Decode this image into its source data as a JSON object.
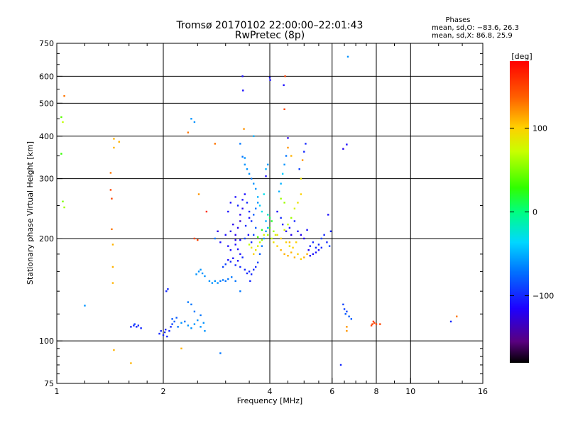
{
  "chart_data": {
    "type": "scatter",
    "title": "Tromsø 20170102 22:00:00–22:01:43",
    "subtitle": "RwPretec (8p)",
    "stats": {
      "heading": "Phases",
      "line1": "mean, sd,O: −83.6, 26.3",
      "line2": "mean, sd,X:  86.8, 25.9"
    },
    "xlabel": "Frequency [MHz]",
    "ylabel": "Stationary phase Virtual Height [km]",
    "x_scale": "log",
    "y_scale": "log",
    "xlim": [
      1,
      16
    ],
    "ylim": [
      75,
      750
    ],
    "x_ticks": [
      1,
      2,
      4,
      6,
      8,
      10,
      16
    ],
    "x_tick_labels": [
      "1",
      "2",
      "4",
      "6",
      "8",
      "10",
      "16"
    ],
    "y_ticks": [
      75,
      100,
      200,
      300,
      400,
      500,
      600,
      750
    ],
    "y_tick_labels": [
      "75",
      "100",
      "200",
      "300",
      "400",
      "500",
      "600",
      "750"
    ],
    "grid": true,
    "colorbar": {
      "label": "[deg]",
      "range": [
        -180,
        180
      ],
      "ticks": [
        100,
        0,
        -100
      ],
      "tick_labels": [
        "100",
        "0",
        "−100"
      ]
    },
    "points": [
      [
        1.05,
        525,
        130
      ],
      [
        1.03,
        455,
        40
      ],
      [
        1.04,
        440,
        70
      ],
      [
        1.03,
        355,
        30
      ],
      [
        1.04,
        257,
        50
      ],
      [
        1.05,
        247,
        60
      ],
      [
        1.2,
        127,
        -60
      ],
      [
        1.45,
        393,
        110
      ],
      [
        1.5,
        385,
        110
      ],
      [
        1.45,
        370,
        110
      ],
      [
        1.42,
        312,
        130
      ],
      [
        1.42,
        278,
        150
      ],
      [
        1.43,
        262,
        150
      ],
      [
        1.43,
        213,
        130
      ],
      [
        1.44,
        192,
        110
      ],
      [
        1.44,
        165,
        110
      ],
      [
        1.44,
        148,
        110
      ],
      [
        1.45,
        94,
        110
      ],
      [
        1.62,
        86,
        110
      ],
      [
        1.62,
        110,
        -100
      ],
      [
        1.65,
        111,
        -100
      ],
      [
        1.68,
        110,
        -100
      ],
      [
        1.7,
        111,
        -100
      ],
      [
        1.66,
        112,
        -90
      ],
      [
        1.73,
        109,
        -100
      ],
      [
        1.95,
        105,
        -100
      ],
      [
        1.97,
        107,
        -100
      ],
      [
        2,
        104,
        -100
      ],
      [
        2.02,
        106,
        -100
      ],
      [
        2.05,
        103,
        -100
      ],
      [
        2.03,
        108,
        -100
      ],
      [
        2.08,
        107,
        -100
      ],
      [
        2.1,
        110,
        -100
      ],
      [
        2.12,
        112,
        -90
      ],
      [
        2.04,
        140,
        -100
      ],
      [
        2.06,
        142,
        -100
      ],
      [
        2.12,
        116,
        -80
      ],
      [
        2.15,
        114,
        -80
      ],
      [
        2.18,
        117,
        -80
      ],
      [
        2.2,
        110,
        -70
      ],
      [
        2.25,
        113,
        -60
      ],
      [
        2.3,
        114,
        -70
      ],
      [
        2.35,
        111,
        -60
      ],
      [
        2.4,
        109,
        -60
      ],
      [
        2.45,
        112,
        -60
      ],
      [
        2.5,
        115,
        -60
      ],
      [
        2.55,
        110,
        -60
      ],
      [
        2.6,
        113,
        -60
      ],
      [
        2.62,
        107,
        -60
      ],
      [
        2.45,
        122,
        -70
      ],
      [
        2.35,
        130,
        -70
      ],
      [
        2.4,
        128,
        -70
      ],
      [
        2.55,
        119,
        -70
      ],
      [
        2.48,
        157,
        -60
      ],
      [
        2.52,
        160,
        -60
      ],
      [
        2.55,
        162,
        -60
      ],
      [
        2.58,
        158,
        -60
      ],
      [
        2.62,
        155,
        -60
      ],
      [
        2.7,
        150,
        -60
      ],
      [
        2.75,
        148,
        -60
      ],
      [
        2.8,
        150,
        -60
      ],
      [
        2.85,
        148,
        -60
      ],
      [
        2.9,
        150,
        -70
      ],
      [
        2.95,
        151,
        -70
      ],
      [
        3,
        150,
        -70
      ],
      [
        3.05,
        152,
        -70
      ],
      [
        3.12,
        154,
        -70
      ],
      [
        3.2,
        150,
        -70
      ],
      [
        3.3,
        140,
        -70
      ],
      [
        2.95,
        165,
        -90
      ],
      [
        3,
        168,
        -90
      ],
      [
        3.05,
        173,
        -110
      ],
      [
        3.1,
        171,
        -100
      ],
      [
        3.15,
        175,
        -110
      ],
      [
        3.2,
        167,
        -100
      ],
      [
        3.25,
        172,
        -110
      ],
      [
        3.3,
        165,
        -100
      ],
      [
        3.05,
        190,
        -110
      ],
      [
        3.1,
        185,
        -110
      ],
      [
        3.2,
        192,
        -110
      ],
      [
        3.25,
        186,
        -110
      ],
      [
        3.3,
        180,
        -110
      ],
      [
        3.35,
        176,
        -100
      ],
      [
        3.4,
        162,
        -100
      ],
      [
        3.45,
        158,
        -100
      ],
      [
        3.5,
        160,
        -100
      ],
      [
        3.55,
        157,
        -100
      ],
      [
        3.6,
        162,
        -100
      ],
      [
        3.65,
        165,
        -100
      ],
      [
        3.52,
        150,
        -100
      ],
      [
        3.7,
        170,
        -90
      ],
      [
        3.75,
        180,
        -80
      ],
      [
        3.8,
        190,
        -70
      ],
      [
        3.85,
        200,
        -60
      ],
      [
        3.9,
        210,
        -60
      ],
      [
        3.95,
        215,
        -50
      ],
      [
        3.2,
        205,
        -120
      ],
      [
        3.25,
        215,
        -120
      ],
      [
        3.3,
        225,
        -130
      ],
      [
        3.3,
        235,
        -120
      ],
      [
        3.35,
        245,
        -120
      ],
      [
        3.35,
        260,
        -110
      ],
      [
        3.4,
        270,
        -110
      ],
      [
        3.45,
        255,
        -100
      ],
      [
        3.5,
        240,
        -100
      ],
      [
        3.5,
        230,
        -110
      ],
      [
        3.55,
        225,
        -100
      ],
      [
        3.6,
        235,
        -80
      ],
      [
        3.65,
        245,
        -70
      ],
      [
        3.7,
        255,
        -60
      ],
      [
        3.42,
        218,
        -100
      ],
      [
        3.48,
        205,
        -110
      ],
      [
        3.55,
        195,
        -100
      ],
      [
        3.6,
        205,
        -90
      ],
      [
        3.65,
        215,
        -80
      ],
      [
        3.4,
        200,
        -90
      ],
      [
        3.3,
        198,
        -110
      ],
      [
        3.2,
        198,
        -120
      ],
      [
        3.1,
        210,
        -120
      ],
      [
        3.15,
        220,
        -120
      ],
      [
        3.05,
        240,
        -110
      ],
      [
        3.1,
        255,
        -110
      ],
      [
        3.2,
        265,
        -110
      ],
      [
        3.25,
        250,
        -100
      ],
      [
        3.0,
        205,
        -110
      ],
      [
        2.9,
        195,
        -110
      ],
      [
        2.85,
        210,
        -120
      ],
      [
        2.8,
        200,
        -70
      ],
      [
        3.45,
        320,
        -60
      ],
      [
        3.5,
        310,
        -60
      ],
      [
        3.55,
        300,
        -70
      ],
      [
        3.6,
        290,
        -60
      ],
      [
        3.65,
        280,
        -60
      ],
      [
        3.7,
        265,
        -50
      ],
      [
        3.75,
        250,
        -40
      ],
      [
        3.8,
        240,
        -30
      ],
      [
        3.85,
        270,
        -30
      ],
      [
        3.9,
        320,
        -50
      ],
      [
        3.95,
        330,
        -60
      ],
      [
        3.9,
        305,
        -110
      ],
      [
        3.4,
        345,
        -60
      ],
      [
        3.4,
        330,
        -60
      ],
      [
        3.35,
        348,
        -70
      ],
      [
        3.3,
        380,
        -70
      ],
      [
        3.6,
        400,
        -50
      ],
      [
        3.35,
        600,
        -110
      ],
      [
        3.36,
        545,
        -110
      ],
      [
        4.0,
        595,
        -110
      ],
      [
        4.01,
        585,
        -110
      ],
      [
        4.38,
        565,
        -110
      ],
      [
        4.4,
        480,
        150
      ],
      [
        4.42,
        600,
        150
      ],
      [
        3.38,
        420,
        120
      ],
      [
        3.9,
        225,
        -50
      ],
      [
        3.95,
        235,
        -20
      ],
      [
        4.0,
        230,
        10
      ],
      [
        4.05,
        225,
        20
      ],
      [
        4.0,
        215,
        40
      ],
      [
        4.1,
        210,
        60
      ],
      [
        4.15,
        205,
        80
      ],
      [
        4.05,
        200,
        70
      ],
      [
        3.95,
        205,
        60
      ],
      [
        3.8,
        198,
        60
      ],
      [
        3.75,
        195,
        70
      ],
      [
        3.7,
        190,
        80
      ],
      [
        3.65,
        185,
        90
      ],
      [
        3.6,
        180,
        100
      ],
      [
        3.55,
        188,
        90
      ],
      [
        3.5,
        192,
        70
      ],
      [
        3.7,
        202,
        40
      ],
      [
        3.8,
        212,
        20
      ],
      [
        3.85,
        205,
        80
      ],
      [
        4.1,
        195,
        90
      ],
      [
        4.2,
        190,
        100
      ],
      [
        4.3,
        185,
        110
      ],
      [
        4.4,
        180,
        110
      ],
      [
        4.5,
        178,
        110
      ],
      [
        4.6,
        182,
        110
      ],
      [
        4.7,
        176,
        110
      ],
      [
        4.8,
        180,
        100
      ],
      [
        4.9,
        174,
        100
      ],
      [
        5.0,
        176,
        110
      ],
      [
        5.1,
        180,
        110
      ],
      [
        4.45,
        195,
        100
      ],
      [
        4.55,
        190,
        90
      ],
      [
        4.65,
        188,
        100
      ],
      [
        4.75,
        195,
        100
      ],
      [
        4.3,
        200,
        100
      ],
      [
        4.2,
        205,
        90
      ],
      [
        4.4,
        212,
        80
      ],
      [
        4.5,
        220,
        70
      ],
      [
        4.6,
        230,
        60
      ],
      [
        4.7,
        245,
        80
      ],
      [
        4.8,
        255,
        90
      ],
      [
        4.4,
        255,
        60
      ],
      [
        4.3,
        262,
        60
      ],
      [
        4.25,
        275,
        -50
      ],
      [
        4.3,
        290,
        -50
      ],
      [
        4.35,
        310,
        -40
      ],
      [
        4.4,
        330,
        -60
      ],
      [
        4.45,
        350,
        -70
      ],
      [
        4.2,
        240,
        -110
      ],
      [
        4.3,
        230,
        -100
      ],
      [
        4.35,
        220,
        -110
      ],
      [
        4.45,
        210,
        -120
      ],
      [
        4.55,
        215,
        -110
      ],
      [
        4.6,
        205,
        -120
      ],
      [
        4.7,
        225,
        -100
      ],
      [
        4.8,
        210,
        -110
      ],
      [
        4.9,
        205,
        -120
      ],
      [
        5.0,
        200,
        -120
      ],
      [
        5.1,
        212,
        -110
      ],
      [
        5.2,
        190,
        -100
      ],
      [
        5.3,
        195,
        -100
      ],
      [
        5.4,
        188,
        -100
      ],
      [
        5.5,
        192,
        -100
      ],
      [
        5.6,
        200,
        -90
      ],
      [
        5.7,
        205,
        -100
      ],
      [
        5.8,
        195,
        -100
      ],
      [
        5.9,
        190,
        -90
      ],
      [
        5.95,
        210,
        -100
      ],
      [
        5.85,
        235,
        -110
      ],
      [
        5.3,
        180,
        -110
      ],
      [
        5.4,
        182,
        -110
      ],
      [
        5.5,
        185,
        -110
      ],
      [
        5.6,
        188,
        -100
      ],
      [
        5.2,
        178,
        -120
      ],
      [
        5.15,
        185,
        -120
      ],
      [
        4.55,
        195,
        110
      ],
      [
        4.5,
        370,
        120
      ],
      [
        4.6,
        350,
        110
      ],
      [
        4.85,
        320,
        -90
      ],
      [
        4.9,
        300,
        90
      ],
      [
        4.95,
        340,
        120
      ],
      [
        5.0,
        360,
        -100
      ],
      [
        5.05,
        380,
        -100
      ],
      [
        4.9,
        270,
        100
      ],
      [
        4.5,
        395,
        -120
      ],
      [
        6.35,
        85,
        -100
      ],
      [
        6.45,
        128,
        -90
      ],
      [
        6.5,
        124,
        -90
      ],
      [
        6.55,
        120,
        -80
      ],
      [
        6.6,
        122,
        -90
      ],
      [
        6.7,
        118,
        -80
      ],
      [
        6.8,
        116,
        -80
      ],
      [
        6.6,
        110,
        120
      ],
      [
        6.6,
        107,
        120
      ],
      [
        6.45,
        367,
        -120
      ],
      [
        6.6,
        378,
        -110
      ],
      [
        6.65,
        685,
        -60
      ],
      [
        7.8,
        112,
        150
      ],
      [
        7.85,
        114,
        150
      ],
      [
        7.9,
        113,
        150
      ],
      [
        7.75,
        111,
        150
      ],
      [
        8.0,
        112,
        150
      ],
      [
        8.2,
        112,
        150
      ],
      [
        13.0,
        114,
        -100
      ],
      [
        13.5,
        118,
        130
      ],
      [
        2.4,
        450,
        -60
      ],
      [
        2.45,
        440,
        -60
      ],
      [
        2.8,
        380,
        130
      ],
      [
        2.35,
        410,
        130
      ],
      [
        2.52,
        270,
        120
      ],
      [
        2.5,
        198,
        150
      ],
      [
        2.45,
        200,
        150
      ],
      [
        2.9,
        92,
        -70
      ],
      [
        2.25,
        95,
        110
      ],
      [
        2.65,
        240,
        160
      ]
    ]
  }
}
